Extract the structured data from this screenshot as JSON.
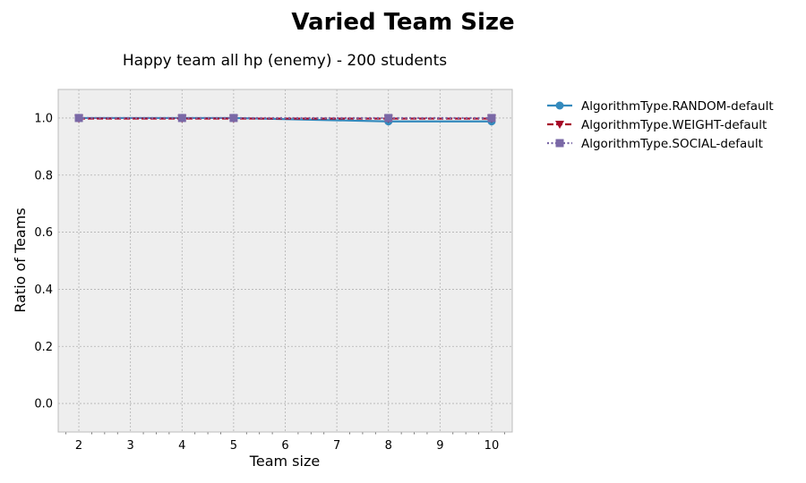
{
  "figure": {
    "suptitle": "Varied Team Size"
  },
  "chart_data": {
    "type": "line",
    "title": "Happy team all hp (enemy) - 200 students",
    "xlabel": "Team size",
    "ylabel": "Ratio of Teams",
    "xlim": [
      1.6,
      10.4
    ],
    "ylim": [
      -0.1,
      1.1
    ],
    "x_ticks": [
      2,
      3,
      4,
      5,
      6,
      7,
      8,
      9,
      10
    ],
    "y_ticks": [
      0.0,
      0.2,
      0.4,
      0.6,
      0.8,
      1.0
    ],
    "y_tick_labels": [
      "0.0",
      "0.2",
      "0.4",
      "0.6",
      "0.8",
      "1.0"
    ],
    "grid": true,
    "legend_position": "outside-right",
    "x": [
      2,
      4,
      5,
      8,
      10
    ],
    "series": [
      {
        "name": "AlgorithmType.RANDOM-default",
        "values": [
          1.0,
          1.0,
          1.0,
          0.988,
          0.988
        ],
        "color": "#348ABD",
        "line_style": "solid",
        "marker": "circle"
      },
      {
        "name": "AlgorithmType.WEIGHT-default",
        "values": [
          0.998,
          0.998,
          0.998,
          0.998,
          0.998
        ],
        "color": "#A60628",
        "line_style": "dashed",
        "marker": "triangle-down"
      },
      {
        "name": "AlgorithmType.SOCIAL-default",
        "values": [
          1.0,
          1.0,
          1.0,
          1.0,
          1.0
        ],
        "color": "#7A68A6",
        "line_style": "dotted",
        "marker": "square"
      }
    ]
  },
  "colors": {
    "plot_background": "#EEEEEE",
    "grid": "#B2B2B2",
    "frame": "#BCBCBC"
  }
}
